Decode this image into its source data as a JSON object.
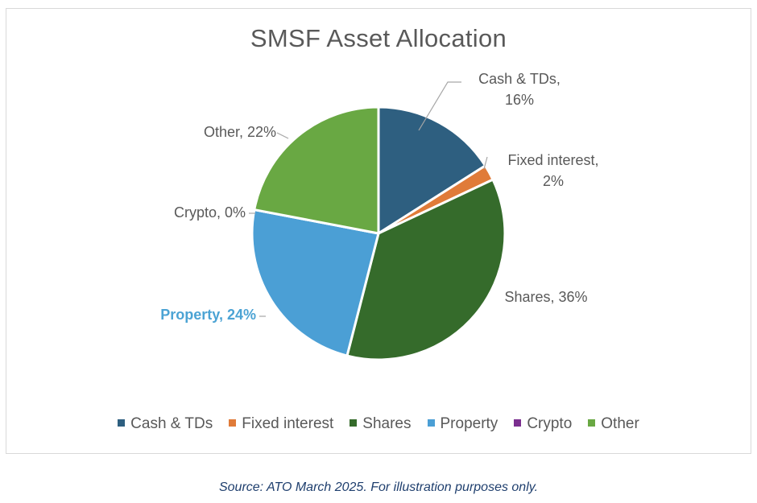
{
  "chart_data": {
    "type": "pie",
    "title": "SMSF Asset Allocation",
    "slices": [
      {
        "name": "Cash & TDs",
        "value": 16,
        "label_lines": [
          "Cash & TDs,",
          "16%"
        ],
        "color": "#2e5f80"
      },
      {
        "name": "Fixed interest",
        "value": 2,
        "label_lines": [
          "Fixed interest,",
          "2%"
        ],
        "color": "#e07b39"
      },
      {
        "name": "Shares",
        "value": 36,
        "label_lines": [
          "Shares, 36%"
        ],
        "color": "#356b2b"
      },
      {
        "name": "Property",
        "value": 24,
        "label_lines": [
          "Property, 24%"
        ],
        "color": "#4b9fd5",
        "highlight": true,
        "highlight_color": "#4ba3d4"
      },
      {
        "name": "Crypto",
        "value": 0,
        "label_lines": [
          "Crypto, 0%"
        ],
        "color": "#7b2f8f"
      },
      {
        "name": "Other",
        "value": 22,
        "label_lines": [
          "Other, 22%"
        ],
        "color": "#69a843"
      }
    ],
    "legend_position": "bottom"
  },
  "source_note": "Source: ATO March 2025. For illustration purposes only."
}
